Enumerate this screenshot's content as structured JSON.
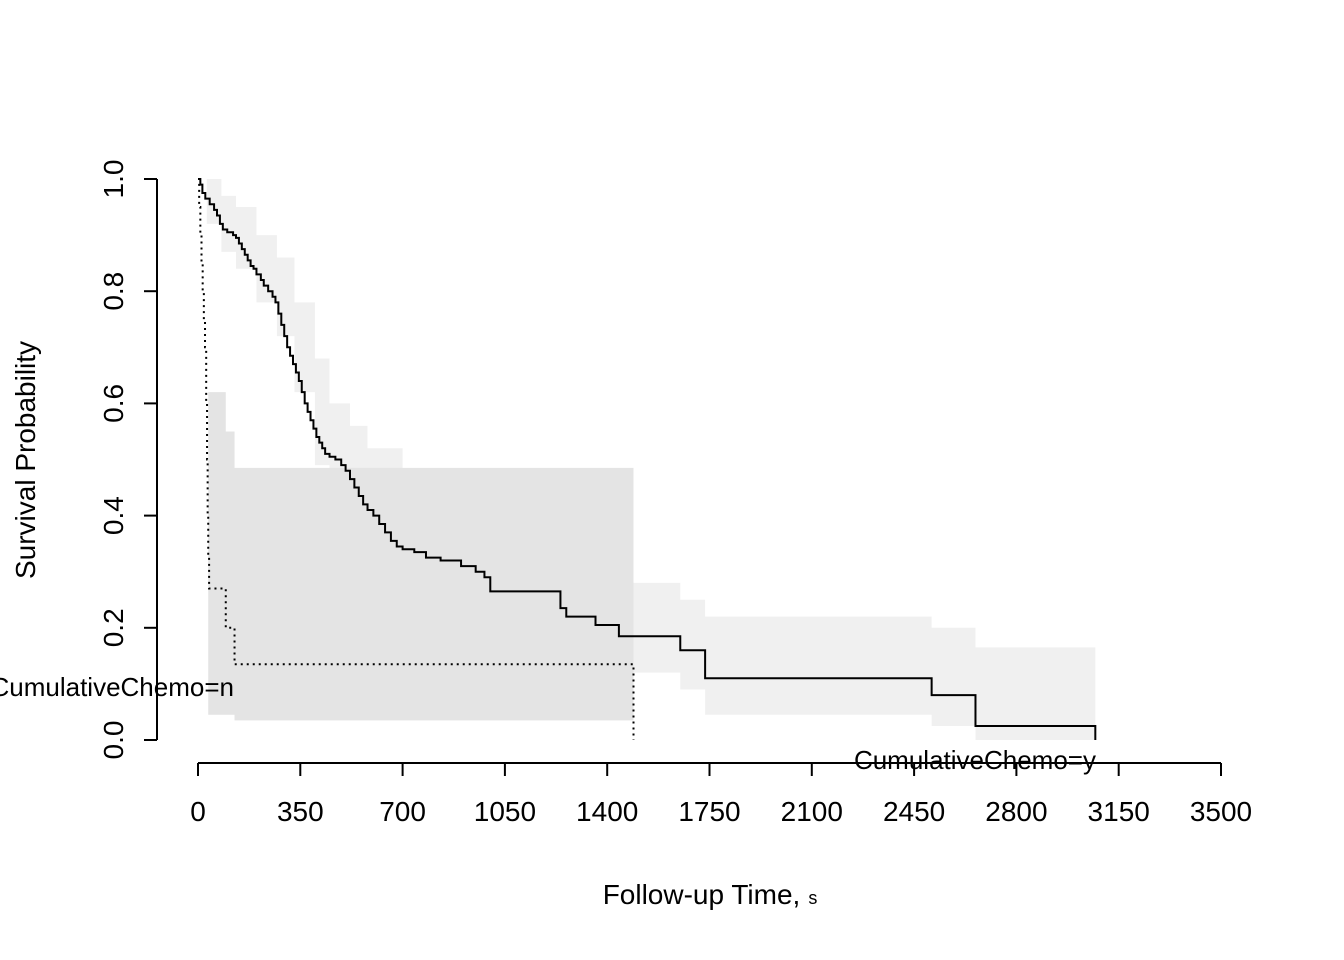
{
  "chart_data": {
    "type": "line",
    "subtype": "kaplan-meier-step",
    "xlabel": "Follow-up Time,",
    "xlabel_unit": "s",
    "ylabel": "Survival Probability",
    "xlim": [
      0,
      3500
    ],
    "ylim": [
      0,
      1
    ],
    "x_ticks": [
      "0",
      "350",
      "700",
      "1050",
      "1400",
      "1750",
      "2100",
      "2450",
      "2800",
      "3150",
      "3500"
    ],
    "y_ticks": [
      "0.0",
      "0.2",
      "0.4",
      "0.6",
      "0.8",
      "1.0"
    ],
    "grid": false,
    "legend": "none",
    "colors": {
      "line": "#000000",
      "ci_y": "#f0f0f0",
      "ci_n": "#e4e4e4"
    },
    "series": [
      {
        "name": "CumulativeChemo=y",
        "line_style": "solid",
        "steps": [
          [
            0,
            1.0
          ],
          [
            8,
            0.99
          ],
          [
            15,
            0.975
          ],
          [
            25,
            0.965
          ],
          [
            40,
            0.955
          ],
          [
            55,
            0.945
          ],
          [
            65,
            0.935
          ],
          [
            75,
            0.92
          ],
          [
            85,
            0.91
          ],
          [
            100,
            0.905
          ],
          [
            120,
            0.9
          ],
          [
            130,
            0.895
          ],
          [
            140,
            0.885
          ],
          [
            150,
            0.875
          ],
          [
            160,
            0.865
          ],
          [
            170,
            0.855
          ],
          [
            180,
            0.845
          ],
          [
            190,
            0.84
          ],
          [
            200,
            0.83
          ],
          [
            215,
            0.82
          ],
          [
            225,
            0.81
          ],
          [
            240,
            0.8
          ],
          [
            255,
            0.79
          ],
          [
            265,
            0.78
          ],
          [
            275,
            0.76
          ],
          [
            285,
            0.74
          ],
          [
            295,
            0.72
          ],
          [
            305,
            0.7
          ],
          [
            315,
            0.685
          ],
          [
            325,
            0.67
          ],
          [
            335,
            0.655
          ],
          [
            345,
            0.64
          ],
          [
            355,
            0.62
          ],
          [
            365,
            0.6
          ],
          [
            375,
            0.585
          ],
          [
            385,
            0.57
          ],
          [
            395,
            0.555
          ],
          [
            405,
            0.54
          ],
          [
            415,
            0.53
          ],
          [
            425,
            0.52
          ],
          [
            435,
            0.51
          ],
          [
            450,
            0.505
          ],
          [
            470,
            0.5
          ],
          [
            490,
            0.49
          ],
          [
            505,
            0.48
          ],
          [
            520,
            0.465
          ],
          [
            535,
            0.45
          ],
          [
            550,
            0.435
          ],
          [
            565,
            0.42
          ],
          [
            580,
            0.41
          ],
          [
            600,
            0.4
          ],
          [
            620,
            0.385
          ],
          [
            640,
            0.37
          ],
          [
            660,
            0.355
          ],
          [
            680,
            0.345
          ],
          [
            700,
            0.34
          ],
          [
            740,
            0.335
          ],
          [
            780,
            0.325
          ],
          [
            830,
            0.32
          ],
          [
            900,
            0.31
          ],
          [
            950,
            0.3
          ],
          [
            980,
            0.29
          ],
          [
            1000,
            0.265
          ],
          [
            1240,
            0.235
          ],
          [
            1260,
            0.22
          ],
          [
            1360,
            0.205
          ],
          [
            1440,
            0.185
          ],
          [
            1650,
            0.16
          ],
          [
            1735,
            0.11
          ],
          [
            2510,
            0.08
          ],
          [
            2660,
            0.025
          ],
          [
            3070,
            0.0
          ]
        ],
        "ci_band": [
          [
            0,
            1.0,
            1.0
          ],
          [
            30,
            0.92,
            1.0
          ],
          [
            80,
            0.87,
            0.97
          ],
          [
            130,
            0.84,
            0.95
          ],
          [
            200,
            0.78,
            0.9
          ],
          [
            270,
            0.72,
            0.86
          ],
          [
            330,
            0.62,
            0.78
          ],
          [
            400,
            0.49,
            0.68
          ],
          [
            450,
            0.46,
            0.6
          ],
          [
            520,
            0.42,
            0.56
          ],
          [
            580,
            0.36,
            0.52
          ],
          [
            700,
            0.3,
            0.48
          ],
          [
            1000,
            0.23,
            0.48
          ],
          [
            1240,
            0.19,
            0.48
          ],
          [
            1440,
            0.15,
            0.48
          ],
          [
            1490,
            0.12,
            0.28
          ],
          [
            1650,
            0.09,
            0.25
          ],
          [
            1735,
            0.045,
            0.22
          ],
          [
            2510,
            0.025,
            0.2
          ],
          [
            2660,
            0.0,
            0.165
          ],
          [
            3070,
            0.0,
            0.165
          ]
        ]
      },
      {
        "name": "CumulativeChemo=n",
        "line_style": "dotted",
        "steps": [
          [
            0,
            1.0
          ],
          [
            4,
            0.95
          ],
          [
            8,
            0.9
          ],
          [
            12,
            0.85
          ],
          [
            16,
            0.8
          ],
          [
            20,
            0.75
          ],
          [
            24,
            0.7
          ],
          [
            28,
            0.6
          ],
          [
            31,
            0.5
          ],
          [
            33,
            0.4
          ],
          [
            35,
            0.33
          ],
          [
            38,
            0.27
          ],
          [
            95,
            0.2
          ],
          [
            125,
            0.135
          ],
          [
            1490,
            0.0
          ]
        ],
        "ci_band": [
          [
            35,
            0.045,
            0.62
          ],
          [
            95,
            0.045,
            0.55
          ],
          [
            125,
            0.035,
            0.485
          ],
          [
            1490,
            0.035,
            0.485
          ]
        ]
      }
    ]
  }
}
